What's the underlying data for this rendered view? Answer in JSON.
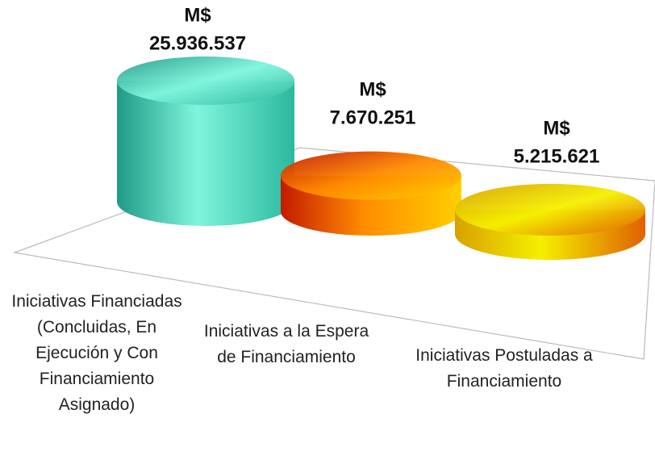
{
  "chart_data": {
    "type": "cylinder",
    "categories": [
      "Iniciativas Financiadas (Concluidas, En Ejecución y Con Financiamiento Asignado)",
      "Iniciativas a la Espera de Financiamiento",
      "Iniciativas Postuladas a Financiamiento"
    ],
    "values": [
      25936537,
      7670251,
      5215621
    ],
    "value_labels": [
      [
        "M$",
        "25.936.537"
      ],
      [
        "M$",
        "7.670.251"
      ],
      [
        "M$",
        "5.215.621"
      ]
    ],
    "colors": [
      [
        "#1f9a86",
        "#7ff5dc",
        "#2bb89e"
      ],
      [
        "#c41a00",
        "#ff8a00",
        "#ffd000"
      ],
      [
        "#d8a000",
        "#f5f000",
        "#e06000"
      ]
    ]
  }
}
